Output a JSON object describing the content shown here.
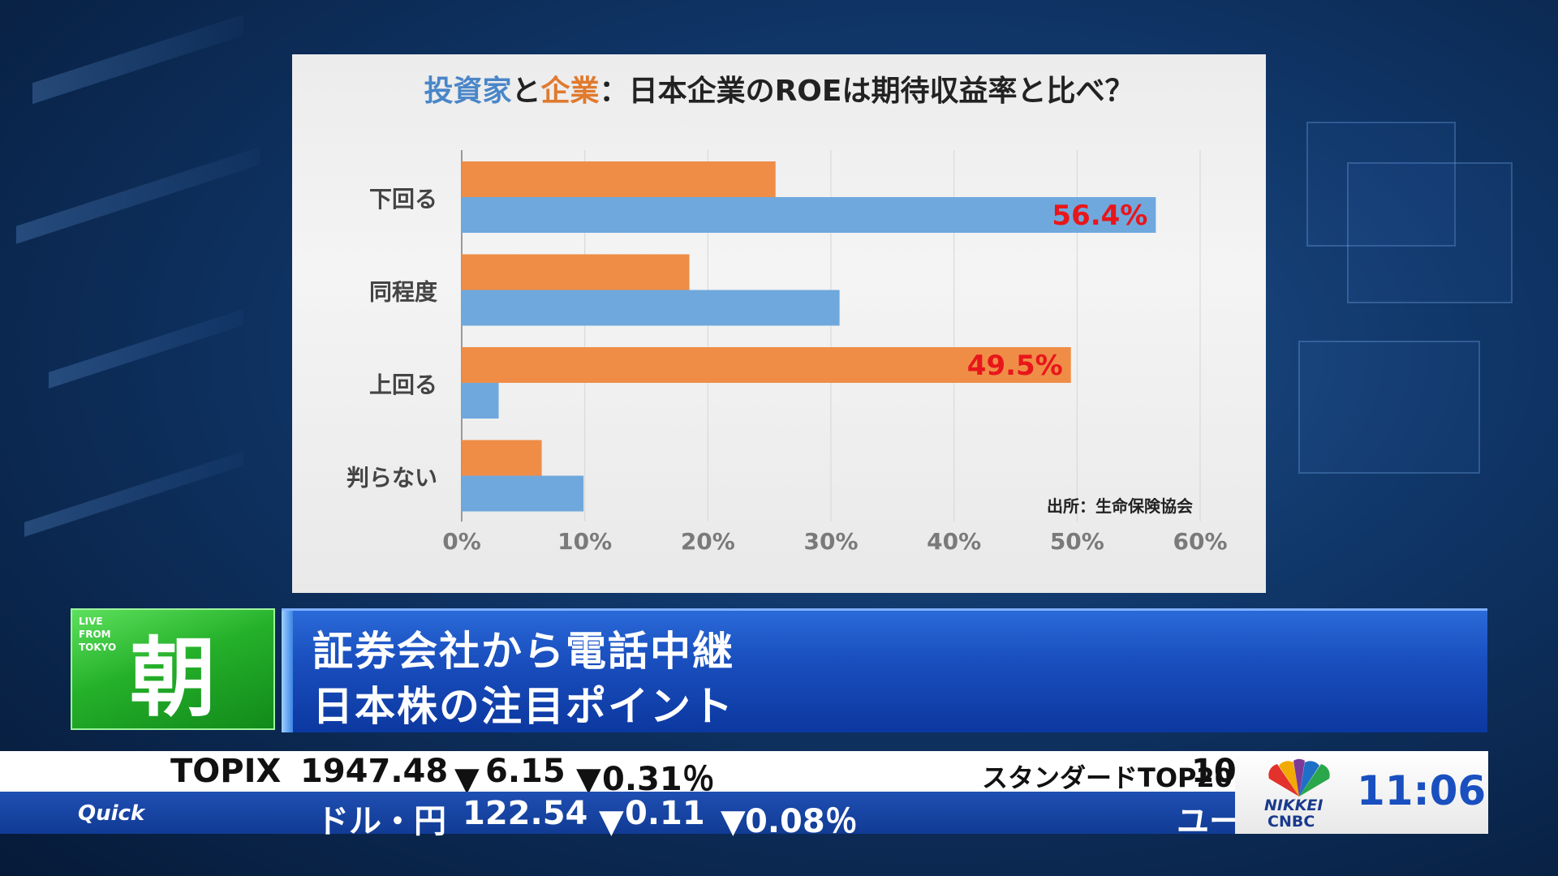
{
  "chart_data": {
    "type": "bar",
    "orientation": "horizontal",
    "title": "投資家と企業：日本企業のROEは期待収益率と比べ？",
    "title_parts": {
      "investor": "投資家",
      "and": "と",
      "company": "企業",
      "rest": "：日本企業のROEは期待収益率と比べ？"
    },
    "categories": [
      "下回る",
      "同程度",
      "上回る",
      "判らない"
    ],
    "series": [
      {
        "key": "company",
        "color": "#ef8d47",
        "values": [
          25.5,
          18.5,
          49.5,
          6.5
        ]
      },
      {
        "key": "investor",
        "color": "#6fa8dc",
        "values": [
          56.4,
          30.7,
          3.0,
          9.9
        ]
      }
    ],
    "data_labels": [
      {
        "category": "下回る",
        "series": "investor",
        "text": "56.4%"
      },
      {
        "category": "上回る",
        "series": "company",
        "text": "49.5%"
      }
    ],
    "label_color": "#e8161b",
    "xlim": [
      0,
      60
    ],
    "x_ticks": [
      "0%",
      "10%",
      "20%",
      "30%",
      "40%",
      "50%",
      "60%"
    ],
    "grid": true,
    "source": "出所：生命保険協会"
  },
  "lower_third": {
    "logo_live": "LIVE\nFROM\nTOKYO",
    "logo_kanji": "朝",
    "headline_1": "証券会社から電話中継",
    "headline_2": "日本株の注目ポイント"
  },
  "ticker": {
    "top": {
      "name": "TOPIX",
      "value": "1947.48",
      "change": "6.15",
      "pct": "0.31％",
      "next_name": "スタンダードTOP20",
      "next_value": "10"
    },
    "bottom": {
      "logo": "Quick",
      "name": "ドル・円",
      "value": "122.54",
      "change": "0.11",
      "pct": "0.08％",
      "next_name": "ユー"
    },
    "down_arrow": "▼"
  },
  "branding": {
    "nikkei": "NIKKEI",
    "cnbc": "CNBC",
    "time": "11:06"
  }
}
